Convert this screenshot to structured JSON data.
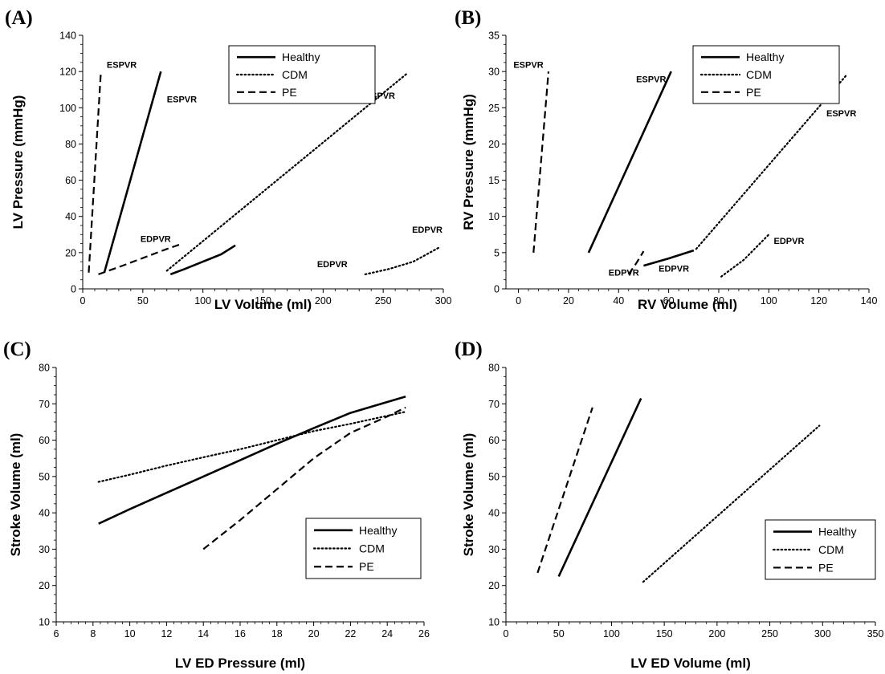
{
  "line_styles": {
    "Healthy": "solid",
    "CDM": "dotted",
    "PE": "dashed"
  },
  "chart_data": [
    {
      "panel": "(A)",
      "type": "line",
      "xlabel": "LV Volume (ml)",
      "ylabel": "LV Pressure (mmHg)",
      "xlim": [
        0,
        300
      ],
      "ylim": [
        0,
        140
      ],
      "xticks": [
        0,
        50,
        100,
        150,
        200,
        250,
        300
      ],
      "yticks": [
        0,
        20,
        40,
        60,
        80,
        100,
        120,
        140
      ],
      "legend": [
        "Healthy",
        "CDM",
        "PE"
      ],
      "legend_position": "top-right",
      "series": [
        {
          "name": "Healthy",
          "x": [
            18,
            65
          ],
          "y": [
            9,
            120
          ]
        },
        {
          "name": "Healthy",
          "x": [
            73,
            85,
            100,
            115,
            127
          ],
          "y": [
            8,
            11,
            15,
            19,
            24
          ]
        },
        {
          "name": "CDM",
          "x": [
            70,
            270
          ],
          "y": [
            10,
            119
          ]
        },
        {
          "name": "CDM",
          "x": [
            235,
            255,
            275,
            297
          ],
          "y": [
            8,
            11,
            15,
            23
          ]
        },
        {
          "name": "PE",
          "x": [
            5,
            15
          ],
          "y": [
            9,
            119
          ]
        },
        {
          "name": "PE",
          "x": [
            13,
            30,
            50,
            70,
            83
          ],
          "y": [
            8,
            12,
            17,
            22,
            25
          ]
        }
      ],
      "annotations": [
        {
          "text": "ESPVR",
          "x": 20,
          "y": 122
        },
        {
          "text": "ESPVR",
          "x": 70,
          "y": 103
        },
        {
          "text": "ESPVR",
          "x": 235,
          "y": 105
        },
        {
          "text": "EDPVR",
          "x": 48,
          "y": 26
        },
        {
          "text": "EDPVR",
          "x": 195,
          "y": 12
        },
        {
          "text": "EDPVR",
          "x": 274,
          "y": 31
        }
      ]
    },
    {
      "panel": "(B)",
      "type": "line",
      "xlabel": "RV Volume (ml)",
      "ylabel": "RV Pressure (mmHg)",
      "xlim": [
        -5,
        140
      ],
      "ylim": [
        0,
        35
      ],
      "xticks": [
        0,
        20,
        40,
        60,
        80,
        100,
        120,
        140
      ],
      "yticks": [
        0,
        5,
        10,
        15,
        20,
        25,
        30,
        35
      ],
      "legend": [
        "Healthy",
        "CDM",
        "PE"
      ],
      "legend_position": "top-right",
      "series": [
        {
          "name": "Healthy",
          "x": [
            28,
            61
          ],
          "y": [
            5,
            30
          ]
        },
        {
          "name": "Healthy",
          "x": [
            50,
            60,
            70
          ],
          "y": [
            3.2,
            4.2,
            5.3
          ]
        },
        {
          "name": "CDM",
          "x": [
            71,
            131
          ],
          "y": [
            5.5,
            29.5
          ]
        },
        {
          "name": "CDM",
          "x": [
            81,
            90,
            100
          ],
          "y": [
            1.7,
            4,
            7.5
          ]
        },
        {
          "name": "PE",
          "x": [
            6,
            12
          ],
          "y": [
            5,
            30
          ]
        },
        {
          "name": "PE",
          "x": [
            44,
            47,
            50
          ],
          "y": [
            2,
            3.5,
            5.2
          ]
        }
      ],
      "annotations": [
        {
          "text": "ESPVR",
          "x": -2,
          "y": 30.5
        },
        {
          "text": "ESPVR",
          "x": 47,
          "y": 28.5
        },
        {
          "text": "ESPVR",
          "x": 123,
          "y": 23.8
        },
        {
          "text": "EDPVR",
          "x": 36,
          "y": 1.8
        },
        {
          "text": "EDPVR",
          "x": 56,
          "y": 2.4
        },
        {
          "text": "EDPVR",
          "x": 102,
          "y": 6.2
        }
      ]
    },
    {
      "panel": "(C)",
      "type": "line",
      "xlabel": "LV ED  Pressure (ml)",
      "ylabel": "Stroke Volume (ml)",
      "xlim": [
        6,
        26
      ],
      "ylim": [
        10,
        80
      ],
      "xticks": [
        6,
        8,
        10,
        12,
        14,
        16,
        18,
        20,
        22,
        24,
        26
      ],
      "yticks": [
        10,
        20,
        30,
        40,
        50,
        60,
        70,
        80
      ],
      "legend": [
        "Healthy",
        "CDM",
        "PE"
      ],
      "legend_position": "lower-right",
      "series": [
        {
          "name": "Healthy",
          "x": [
            8.3,
            10,
            12,
            14,
            16,
            18,
            20,
            22,
            24,
            25
          ],
          "y": [
            37,
            41,
            45.5,
            50,
            54.5,
            59,
            63.3,
            67.5,
            70.5,
            72
          ]
        },
        {
          "name": "CDM",
          "x": [
            8.3,
            10,
            12,
            14,
            16,
            18,
            20,
            22,
            24,
            25
          ],
          "y": [
            48.5,
            50.5,
            53,
            55.3,
            57.5,
            60,
            62.5,
            64.5,
            66.7,
            67.8
          ]
        },
        {
          "name": "PE",
          "x": [
            14,
            16,
            18,
            20,
            22,
            24,
            25
          ],
          "y": [
            30,
            38,
            46.5,
            55,
            62,
            66.5,
            69
          ]
        }
      ]
    },
    {
      "panel": "(D)",
      "type": "line",
      "xlabel": "LV ED  Volume (ml)",
      "ylabel": "Stroke Volume (ml)",
      "xlim": [
        0,
        350
      ],
      "ylim": [
        10,
        80
      ],
      "xticks": [
        0,
        50,
        100,
        150,
        200,
        250,
        300,
        350
      ],
      "yticks": [
        10,
        20,
        30,
        40,
        50,
        60,
        70,
        80
      ],
      "legend": [
        "Healthy",
        "CDM",
        "PE"
      ],
      "legend_position": "lower-right",
      "series": [
        {
          "name": "Healthy",
          "x": [
            50,
            128
          ],
          "y": [
            22.5,
            71.5
          ]
        },
        {
          "name": "CDM",
          "x": [
            130,
            297
          ],
          "y": [
            21,
            64
          ]
        },
        {
          "name": "PE",
          "x": [
            30,
            82
          ],
          "y": [
            23.5,
            69
          ]
        }
      ]
    }
  ]
}
